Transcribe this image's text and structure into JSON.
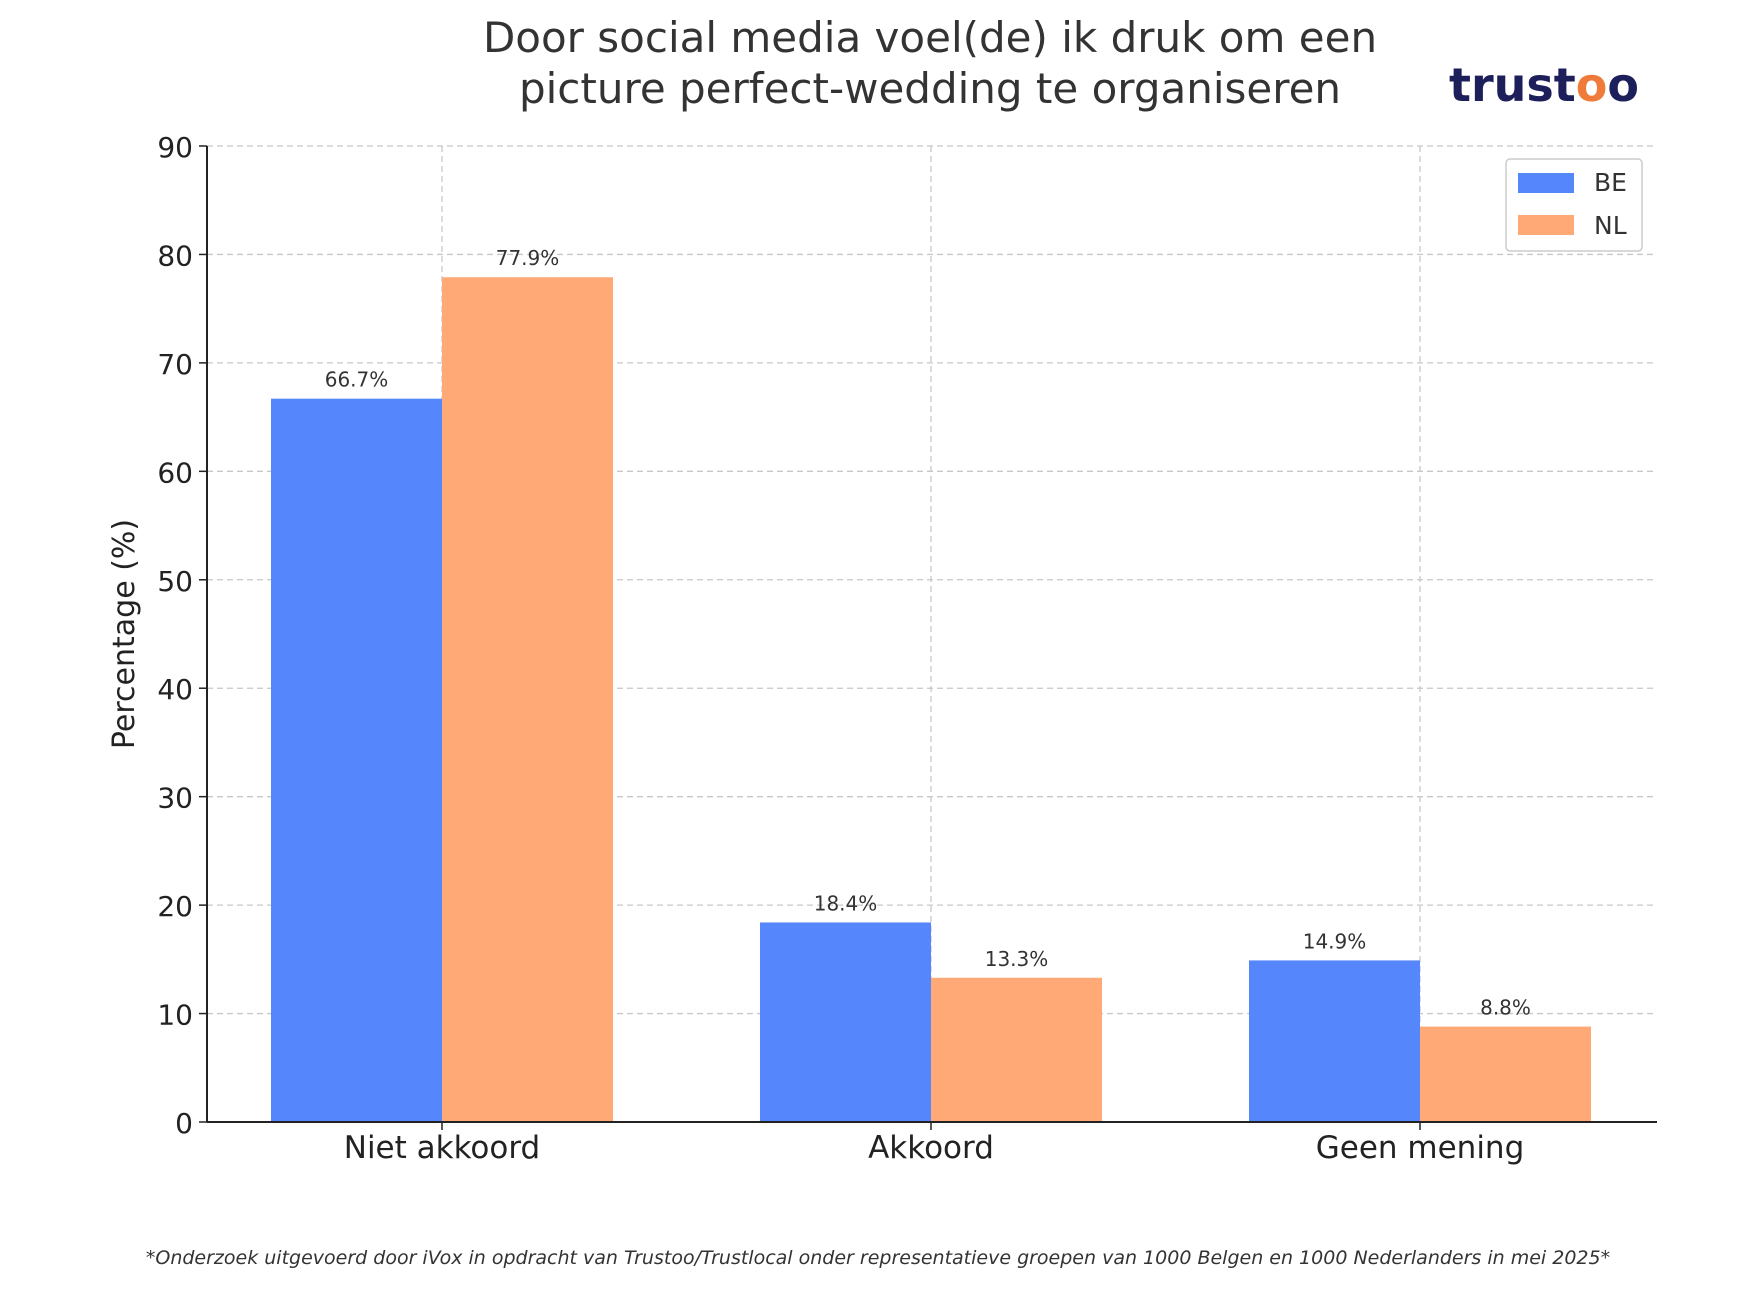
{
  "colors": {
    "be": "#5586FB",
    "nl": "#FFAA76",
    "text": "#333333",
    "grid": "#c8c8c8",
    "logo_dark": "#1c1f5a",
    "logo_accent": "#f07a3a"
  },
  "logo": {
    "text": "trustoo"
  },
  "footnote": "*Onderzoek uitgevoerd door iVox in opdracht van Trustoo/Trustlocal onder representatieve groepen van 1000 Belgen en 1000 Nederlanders in mei 2025*",
  "chart_data": {
    "type": "bar",
    "title_lines": [
      "Door social media voel(de) ik druk om een",
      "picture perfect-wedding te organiseren"
    ],
    "xlabel": "",
    "ylabel": "Percentage (%)",
    "ylim": [
      0,
      90
    ],
    "yticks": [
      0,
      10,
      20,
      30,
      40,
      50,
      60,
      70,
      80,
      90
    ],
    "grid": true,
    "legend_position": "top-right",
    "categories": [
      "Niet akkoord",
      "Akkoord",
      "Geen mening"
    ],
    "series": [
      {
        "name": "BE",
        "values": [
          66.7,
          18.4,
          14.9
        ],
        "labels": [
          "66.7%",
          "18.4%",
          "14.9%"
        ]
      },
      {
        "name": "NL",
        "values": [
          77.9,
          13.3,
          8.8
        ],
        "labels": [
          "77.9%",
          "13.3%",
          "8.8%"
        ]
      }
    ]
  }
}
